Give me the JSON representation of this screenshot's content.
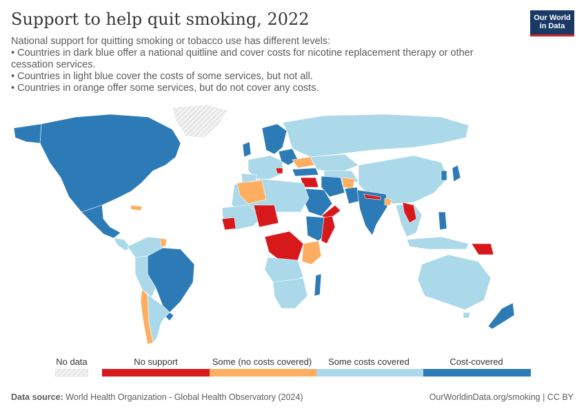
{
  "header": {
    "title": "Support to help quit smoking, 2022",
    "subtitle_lines": [
      "National support for quitting smoking or tobacco use has different levels:",
      "• Countries in dark blue offer a national quitline and cover costs for nicotine replacement therapy or other cessation services.",
      "• Countries in light blue cover the costs of some services, but not all.",
      "• Countries in orange offer some services, but do not cover any costs."
    ]
  },
  "logo": {
    "line1": "Our World",
    "line2": "in Data"
  },
  "colors": {
    "no_data": "#e6e6e6",
    "no_support": "#d7191c",
    "some_no_costs": "#fdae61",
    "some_costs": "#abd9e9",
    "cost_covered": "#2c7bb6",
    "ocean": "#ffffff",
    "border": "#ffffff"
  },
  "legend": {
    "no_data": "No data",
    "items": [
      "No support",
      "Some (no costs covered)",
      "Some costs covered",
      "Cost-covered"
    ]
  },
  "footer": {
    "source_label": "Data source:",
    "source_text": "World Health Organization - Global Health Observatory (2024)",
    "url": "OurWorldinData.org/smoking | CC BY"
  }
}
